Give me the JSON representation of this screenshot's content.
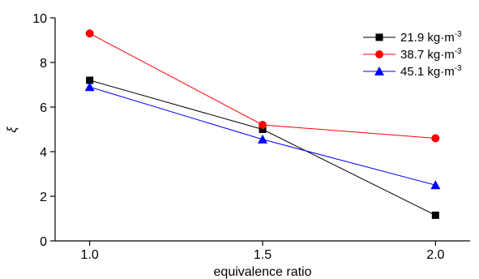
{
  "chart_data": {
    "type": "line",
    "xlabel": "equivalence ratio",
    "ylabel": "ξ",
    "x": [
      1.0,
      1.5,
      2.0
    ],
    "x_tick_labels": [
      "1.0",
      "1.5",
      "2.0"
    ],
    "y_ticks": [
      0,
      2,
      4,
      6,
      8,
      10
    ],
    "y_tick_labels": [
      "0",
      "2",
      "4",
      "6",
      "8",
      "10"
    ],
    "xlim": [
      0.9,
      2.1
    ],
    "ylim": [
      0,
      10
    ],
    "grid": false,
    "legend_position": "top-right",
    "series": [
      {
        "name": "21.9 kg·m",
        "unit_superscript": "-3",
        "values": [
          7.2,
          5.0,
          1.15
        ],
        "color": "#000000",
        "marker": "square"
      },
      {
        "name": "38.7 kg·m",
        "unit_superscript": "-3",
        "values": [
          9.3,
          5.2,
          4.6
        ],
        "color": "#ff0000",
        "marker": "circle"
      },
      {
        "name": "45.1 kg·m",
        "unit_superscript": "-3",
        "values": [
          6.9,
          4.55,
          2.5
        ],
        "color": "#0000ff",
        "marker": "triangle"
      }
    ]
  }
}
